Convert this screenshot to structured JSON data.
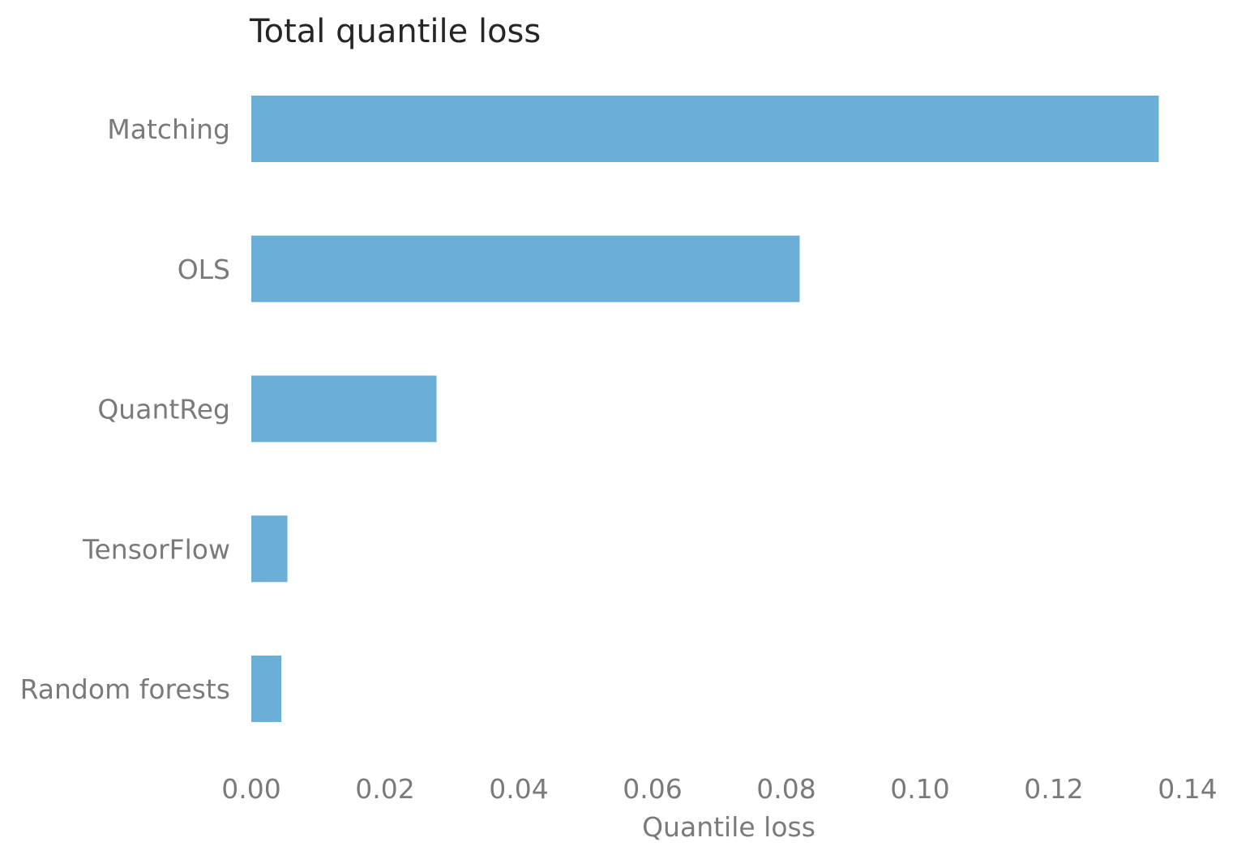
{
  "chart_data": {
    "type": "bar",
    "orientation": "horizontal",
    "title": "Total quantile loss",
    "xlabel": "Quantile loss",
    "ylabel": "",
    "categories": [
      "Matching",
      "OLS",
      "QuantReg",
      "TensorFlow",
      "Random forests"
    ],
    "values": [
      0.1357,
      0.082,
      0.0277,
      0.0054,
      0.0045
    ],
    "xlim": [
      0,
      0.14
    ],
    "xticks": [
      "0.00",
      "0.02",
      "0.04",
      "0.06",
      "0.08",
      "0.10",
      "0.12",
      "0.14"
    ],
    "grid": false,
    "bar_color": "#6baed6"
  }
}
